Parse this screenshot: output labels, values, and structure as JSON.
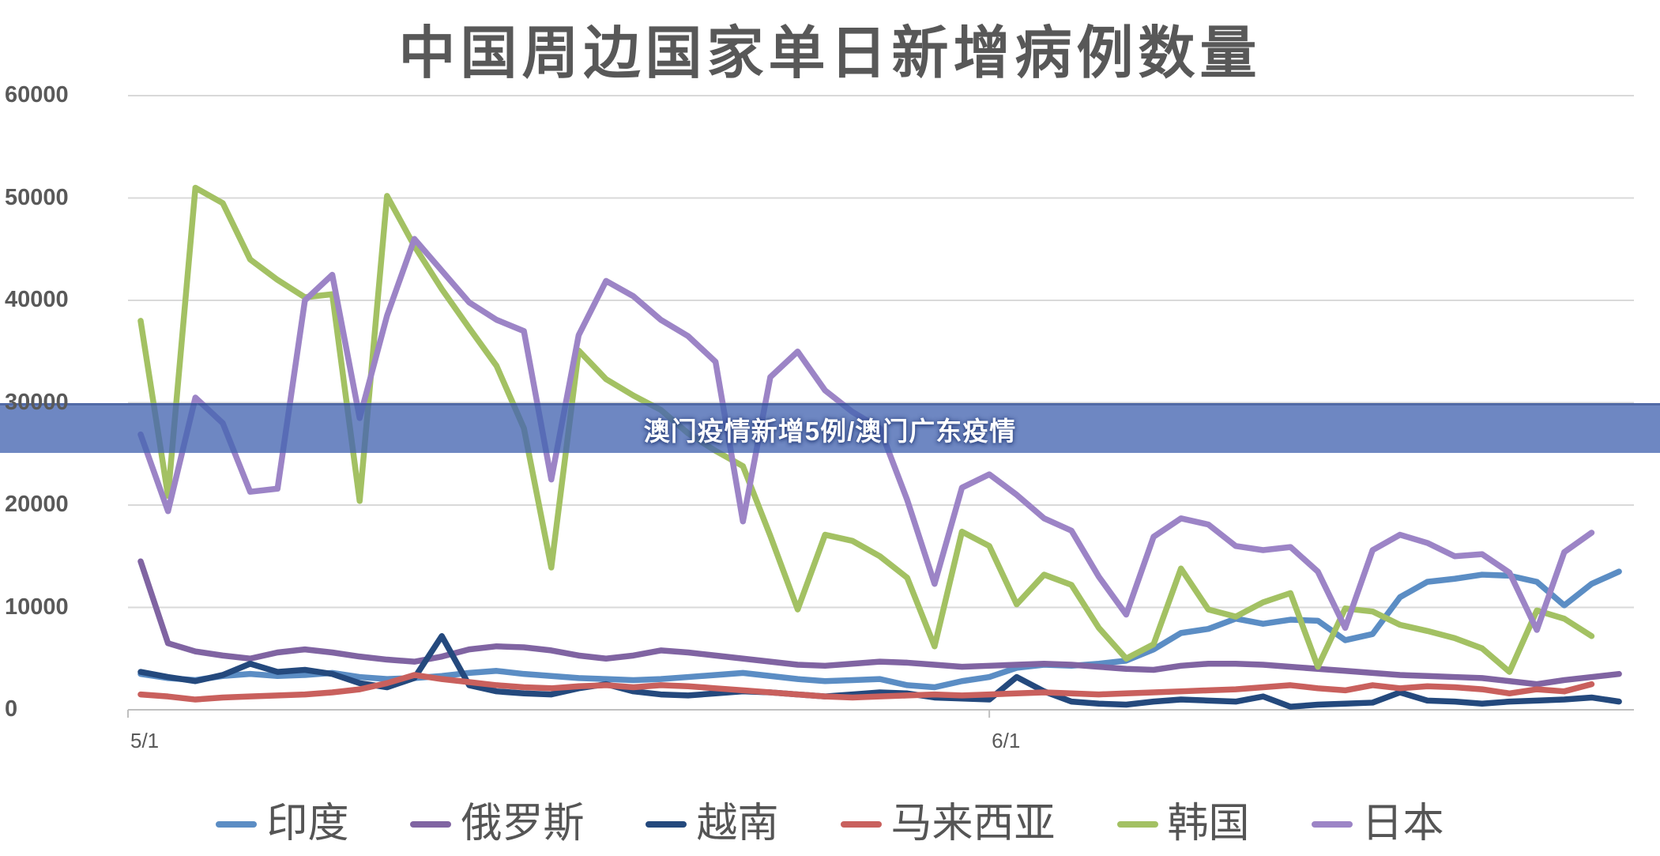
{
  "page_title": "中国周边国家单日新增病例数量",
  "banner": {
    "text": "澳门疫情新增5例/澳门广东疫情",
    "bg_color": "#4565B1",
    "text_color": "#FFFFFF"
  },
  "chart_data": {
    "type": "line",
    "title": "中国周边国家单日新增病例数量",
    "xlabel": "",
    "ylabel": "",
    "ylim": [
      0,
      60000
    ],
    "grid": true,
    "legend_position": "bottom",
    "y_ticks": [
      {
        "value": 0,
        "label": "0"
      },
      {
        "value": 10000,
        "label": "10000"
      },
      {
        "value": 20000,
        "label": "20000"
      },
      {
        "value": 30000,
        "label": "30000"
      },
      {
        "value": 40000,
        "label": "40000"
      },
      {
        "value": 50000,
        "label": "50000"
      },
      {
        "value": 60000,
        "label": "60000"
      }
    ],
    "x_ticks": [
      {
        "label": "5/1",
        "day": 0
      },
      {
        "label": "6/1",
        "day": 31
      }
    ],
    "x_unit": "day",
    "series": [
      {
        "name": "印度",
        "color": "#5B8DC4",
        "values": [
          3500,
          3100,
          2900,
          3300,
          3500,
          3300,
          3400,
          3600,
          3200,
          3000,
          3100,
          3300,
          3600,
          3800,
          3500,
          3300,
          3100,
          3000,
          2900,
          3000,
          3200,
          3400,
          3600,
          3300,
          3000,
          2800,
          2900,
          3000,
          2400,
          2200,
          2800,
          3200,
          4100,
          4400,
          4300,
          4500,
          4800,
          5900,
          7500,
          7900,
          8900,
          8400,
          8800,
          8700,
          6800,
          7400,
          11000,
          12500,
          12800,
          13200,
          13100,
          12500,
          10200,
          12300,
          13500
        ]
      },
      {
        "name": "俄罗斯",
        "color": "#8064A2",
        "values": [
          14500,
          6500,
          5700,
          5300,
          5000,
          5600,
          5900,
          5600,
          5200,
          4900,
          4700,
          5200,
          5900,
          6200,
          6100,
          5800,
          5300,
          5000,
          5300,
          5800,
          5600,
          5300,
          5000,
          4700,
          4400,
          4300,
          4500,
          4700,
          4600,
          4400,
          4200,
          4300,
          4400,
          4500,
          4400,
          4200,
          4000,
          3900,
          4300,
          4500,
          4500,
          4400,
          4200,
          4000,
          3800,
          3600,
          3400,
          3300,
          3200,
          3100,
          2800,
          2500,
          2900,
          3200,
          3500
        ]
      },
      {
        "name": "越南",
        "color": "#24497D",
        "values": [
          3700,
          3200,
          2800,
          3400,
          4500,
          3700,
          3900,
          3500,
          2600,
          2200,
          3100,
          7200,
          2400,
          1800,
          1600,
          1500,
          2100,
          2500,
          1800,
          1500,
          1400,
          1600,
          1800,
          1700,
          1500,
          1300,
          1500,
          1700,
          1600,
          1200,
          1100,
          1000,
          3200,
          1800,
          800,
          600,
          500,
          800,
          1000,
          900,
          800,
          1300,
          300,
          500,
          600,
          700,
          1700,
          900,
          800,
          600,
          800,
          900,
          1000,
          1200,
          800
        ]
      },
      {
        "name": "马来西亚",
        "color": "#C9605D",
        "values": [
          1500,
          1300,
          1000,
          1200,
          1300,
          1400,
          1500,
          1700,
          2000,
          2600,
          3400,
          3000,
          2700,
          2400,
          2200,
          2100,
          2300,
          2400,
          2200,
          2400,
          2300,
          2100,
          1900,
          1700,
          1500,
          1300,
          1200,
          1300,
          1400,
          1500,
          1400,
          1500,
          1600,
          1700,
          1600,
          1500,
          1600,
          1700,
          1800,
          1900,
          2000,
          2200,
          2400,
          2100,
          1900,
          2400,
          2100,
          2300,
          2200,
          2000,
          1600,
          2000,
          1800,
          2500
        ]
      },
      {
        "name": "韩国",
        "color": "#A3C163",
        "values": [
          38000,
          20900,
          51000,
          49500,
          44000,
          42000,
          40300,
          40600,
          20400,
          50200,
          45300,
          41100,
          37300,
          33600,
          27500,
          13900,
          35100,
          32300,
          30700,
          29300,
          27000,
          25300,
          23800,
          17000,
          9800,
          17100,
          16500,
          15000,
          12900,
          6200,
          17400,
          16000,
          10300,
          13200,
          12200,
          8000,
          5000,
          6400,
          13800,
          9800,
          9100,
          10500,
          11400,
          4200,
          9900,
          9600,
          8300,
          7700,
          7000,
          6000,
          3700,
          9700,
          8900,
          7200
        ]
      },
      {
        "name": "日本",
        "color": "#9C84C6",
        "values": [
          26900,
          19400,
          30500,
          28000,
          21300,
          21600,
          40000,
          42500,
          28500,
          38500,
          46000,
          42900,
          39800,
          38100,
          37000,
          22500,
          36600,
          41900,
          40400,
          38100,
          36500,
          34000,
          18400,
          32500,
          35000,
          31200,
          29100,
          27500,
          20500,
          12300,
          21700,
          23000,
          21000,
          18700,
          17500,
          13000,
          9300,
          16900,
          18700,
          18100,
          16000,
          15600,
          15900,
          13500,
          8000,
          15600,
          17100,
          16300,
          15000,
          15200,
          13400,
          7800,
          15400,
          17300
        ]
      }
    ]
  }
}
